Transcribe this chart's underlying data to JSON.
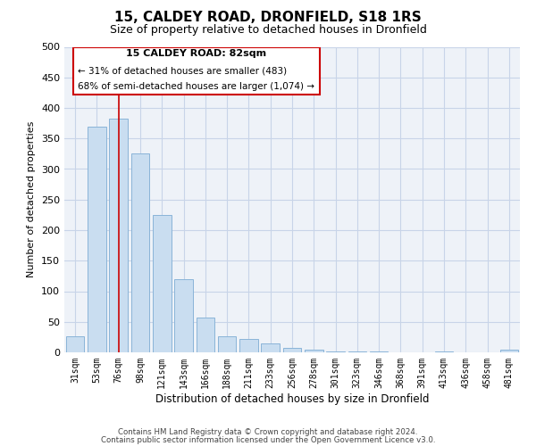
{
  "title": "15, CALDEY ROAD, DRONFIELD, S18 1RS",
  "subtitle": "Size of property relative to detached houses in Dronfield",
  "xlabel": "Distribution of detached houses by size in Dronfield",
  "ylabel": "Number of detached properties",
  "bar_labels": [
    "31sqm",
    "53sqm",
    "76sqm",
    "98sqm",
    "121sqm",
    "143sqm",
    "166sqm",
    "188sqm",
    "211sqm",
    "233sqm",
    "256sqm",
    "278sqm",
    "301sqm",
    "323sqm",
    "346sqm",
    "368sqm",
    "391sqm",
    "413sqm",
    "436sqm",
    "458sqm",
    "481sqm"
  ],
  "bar_values": [
    27,
    370,
    383,
    325,
    225,
    120,
    57,
    27,
    22,
    15,
    7,
    5,
    2,
    1,
    1,
    0,
    0,
    2,
    0,
    0,
    5
  ],
  "bar_color": "#c9ddf0",
  "bar_edge_color": "#8ab4d8",
  "ylim": [
    0,
    500
  ],
  "yticks": [
    0,
    50,
    100,
    150,
    200,
    250,
    300,
    350,
    400,
    450,
    500
  ],
  "vline_color": "#cc0000",
  "annotation_title": "15 CALDEY ROAD: 82sqm",
  "annotation_line1": "← 31% of detached houses are smaller (483)",
  "annotation_line2": "68% of semi-detached houses are larger (1,074) →",
  "annotation_box_color": "#cc0000",
  "footer_line1": "Contains HM Land Registry data © Crown copyright and database right 2024.",
  "footer_line2": "Contains public sector information licensed under the Open Government Licence v3.0.",
  "bg_color": "#ffffff",
  "plot_bg_color": "#eef2f8",
  "grid_color": "#c8d4e8",
  "title_fontsize": 11,
  "subtitle_fontsize": 9
}
